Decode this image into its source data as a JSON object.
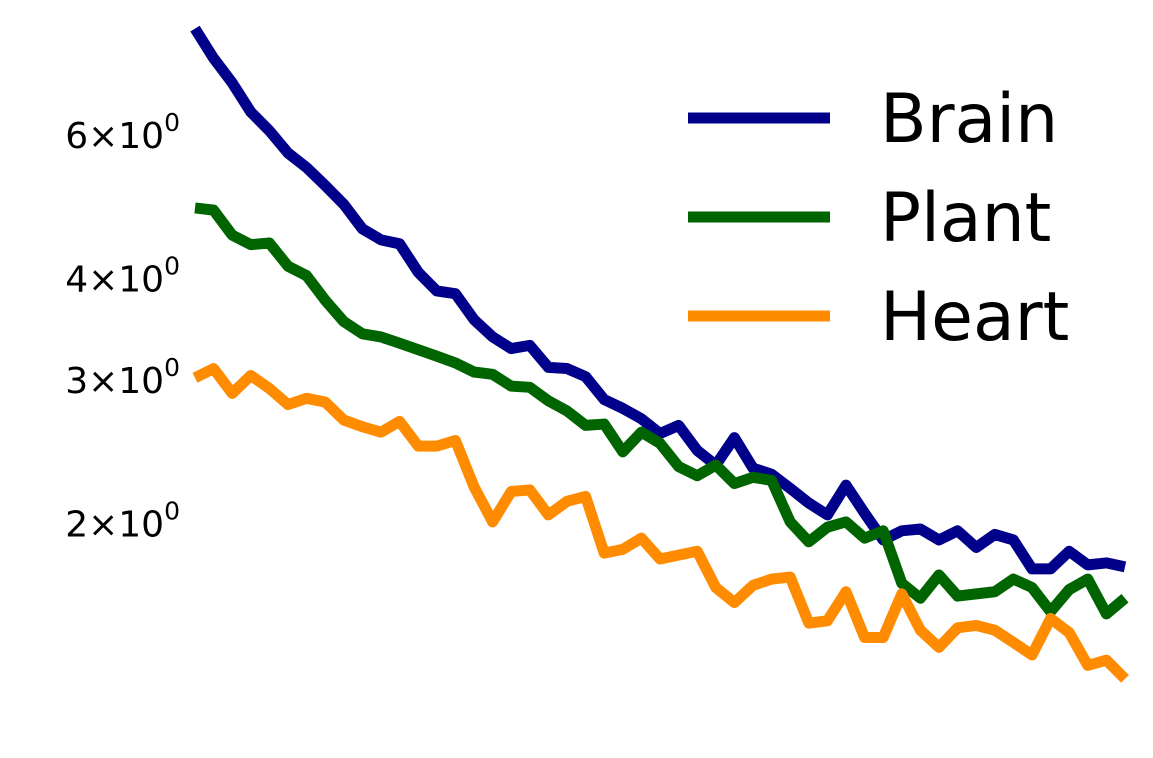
{
  "chart_data": {
    "type": "line",
    "title": "",
    "xlabel": "",
    "ylabel": "",
    "x_axis_visible": false,
    "yscale": "log",
    "ylim": [
      1.25,
      8.3
    ],
    "x": [
      0,
      1,
      2,
      3,
      4,
      5,
      6,
      7,
      8,
      9,
      10,
      11,
      12,
      13,
      14,
      15,
      16,
      17,
      18,
      19,
      20,
      21,
      22,
      23,
      24,
      25,
      26,
      27,
      28,
      29,
      30,
      31,
      32,
      33,
      34,
      35,
      36,
      37,
      38,
      39,
      40,
      41,
      42,
      43,
      44,
      45,
      46,
      47,
      48,
      49,
      50
    ],
    "y_ticks": [
      {
        "value": 2,
        "label": "2×10",
        "exp": "0"
      },
      {
        "value": 3,
        "label": "3×10",
        "exp": "0"
      },
      {
        "value": 4,
        "label": "4×10",
        "exp": "0"
      },
      {
        "value": 6,
        "label": "6×10",
        "exp": "0"
      }
    ],
    "grid": false,
    "legend": {
      "position": "top-right"
    },
    "series": [
      {
        "name": "Brain",
        "color": "#00008b",
        "values": [
          8.1,
          7.45,
          6.95,
          6.4,
          6.07,
          5.7,
          5.47,
          5.2,
          4.93,
          4.6,
          4.46,
          4.41,
          4.07,
          3.86,
          3.83,
          3.56,
          3.39,
          3.28,
          3.31,
          3.11,
          3.1,
          3.03,
          2.84,
          2.77,
          2.69,
          2.58,
          2.64,
          2.46,
          2.36,
          2.55,
          2.34,
          2.3,
          2.21,
          2.12,
          2.05,
          2.23,
          2.06,
          1.91,
          1.96,
          1.97,
          1.91,
          1.96,
          1.87,
          1.94,
          1.91,
          1.76,
          1.76,
          1.85,
          1.78,
          1.79,
          1.77
        ]
      },
      {
        "name": "Plant",
        "color": "#006400",
        "values": [
          4.88,
          4.85,
          4.52,
          4.4,
          4.42,
          4.14,
          4.03,
          3.76,
          3.54,
          3.42,
          3.39,
          3.33,
          3.27,
          3.21,
          3.15,
          3.07,
          3.05,
          2.95,
          2.94,
          2.83,
          2.75,
          2.64,
          2.65,
          2.45,
          2.59,
          2.51,
          2.35,
          2.29,
          2.36,
          2.24,
          2.28,
          2.26,
          2.01,
          1.9,
          1.98,
          2.01,
          1.92,
          1.96,
          1.69,
          1.62,
          1.73,
          1.63,
          1.64,
          1.65,
          1.71,
          1.67,
          1.56,
          1.66,
          1.71,
          1.55,
          1.62
        ]
      },
      {
        "name": "Heart",
        "color": "#ff8c00",
        "values": [
          3.02,
          3.1,
          2.89,
          3.04,
          2.93,
          2.8,
          2.85,
          2.82,
          2.68,
          2.63,
          2.59,
          2.67,
          2.49,
          2.49,
          2.53,
          2.22,
          2.01,
          2.19,
          2.2,
          2.05,
          2.13,
          2.16,
          1.84,
          1.86,
          1.92,
          1.81,
          1.83,
          1.85,
          1.67,
          1.6,
          1.68,
          1.71,
          1.72,
          1.51,
          1.52,
          1.65,
          1.45,
          1.45,
          1.64,
          1.48,
          1.41,
          1.49,
          1.5,
          1.48,
          1.43,
          1.38,
          1.53,
          1.47,
          1.34,
          1.36,
          1.29
        ]
      }
    ]
  }
}
